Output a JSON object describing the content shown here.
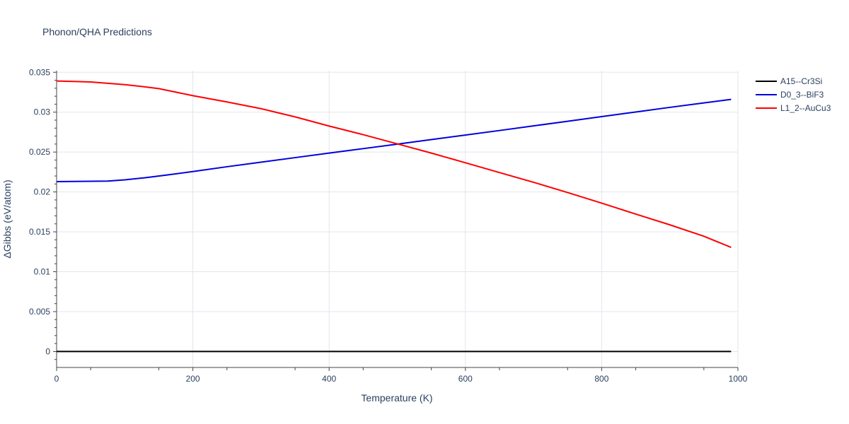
{
  "chart_data": {
    "type": "line",
    "title": "Phonon/QHA Predictions",
    "xlabel": "Temperature (K)",
    "ylabel": "ΔGibbs (eV/atom)",
    "xlim": [
      0,
      1000
    ],
    "ylim": [
      -0.002,
      0.0352
    ],
    "x_ticks": [
      0,
      200,
      400,
      600,
      800,
      1000
    ],
    "x_tick_labels": [
      "0",
      "200",
      "400",
      "600",
      "800",
      "1000"
    ],
    "y_ticks": [
      0,
      0.005,
      0.01,
      0.015,
      0.02,
      0.025,
      0.03,
      0.035
    ],
    "y_tick_labels": [
      "0",
      "0.005",
      "0.01",
      "0.015",
      "0.02",
      "0.025",
      "0.03",
      "0.035"
    ],
    "grid": true,
    "legend_position": "top-right outside",
    "series": [
      {
        "name": "A15--Cr3Si",
        "color": "#000000",
        "x": [
          0,
          100,
          200,
          300,
          400,
          500,
          600,
          700,
          800,
          900,
          990
        ],
        "y": [
          0,
          0,
          0,
          0,
          0,
          0,
          0,
          0,
          0,
          0,
          0
        ]
      },
      {
        "name": "D0_3--BiF3",
        "color": "#0000dd",
        "x": [
          0,
          25,
          50,
          75,
          100,
          130,
          160,
          200,
          250,
          300,
          350,
          400,
          450,
          500,
          550,
          600,
          650,
          700,
          750,
          800,
          850,
          900,
          950,
          990
        ],
        "y": [
          0.0213,
          0.02132,
          0.02134,
          0.02136,
          0.02152,
          0.02178,
          0.0221,
          0.02256,
          0.02316,
          0.02373,
          0.0243,
          0.02487,
          0.02543,
          0.02599,
          0.02656,
          0.02713,
          0.0277,
          0.02828,
          0.02886,
          0.02944,
          0.03002,
          0.0306,
          0.03116,
          0.0316
        ]
      },
      {
        "name": "L1_2--AuCu3",
        "color": "#ff0000",
        "x": [
          0,
          25,
          50,
          75,
          100,
          125,
          150,
          200,
          250,
          300,
          350,
          400,
          450,
          500,
          550,
          600,
          650,
          700,
          750,
          800,
          850,
          900,
          950,
          990
        ],
        "y": [
          0.0339,
          0.03385,
          0.03378,
          0.03362,
          0.03345,
          0.03322,
          0.03295,
          0.03207,
          0.03128,
          0.03044,
          0.02941,
          0.02826,
          0.02718,
          0.02603,
          0.02487,
          0.02366,
          0.02243,
          0.02121,
          0.01993,
          0.0186,
          0.01723,
          0.01588,
          0.01445,
          0.01305
        ]
      }
    ]
  }
}
